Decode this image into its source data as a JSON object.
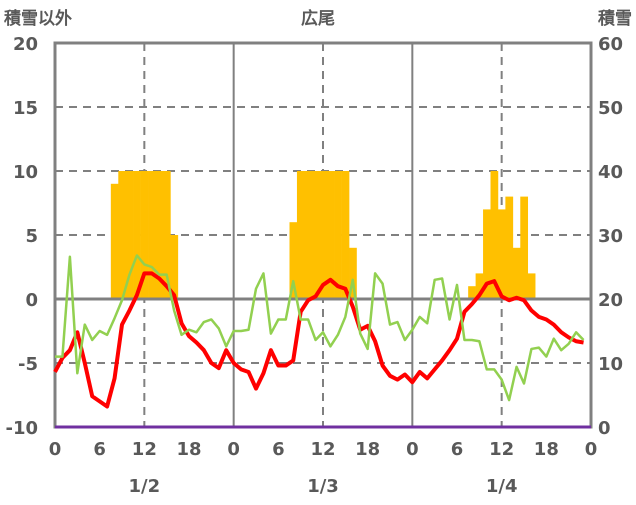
{
  "chart_data": {
    "type": "bar+line",
    "title": "広尾",
    "ylabel_left": "積雪以外",
    "ylabel_right": "積雪",
    "ylim_left": [
      -10,
      20
    ],
    "ylim_right": [
      0,
      60
    ],
    "yticks_left": [
      "20",
      "15",
      "10",
      "5",
      "0",
      "-5",
      "-10"
    ],
    "yticks_right": [
      "60",
      "50",
      "40",
      "30",
      "20",
      "10",
      "0"
    ],
    "xticks": [
      "0",
      "6",
      "12",
      "18",
      "0",
      "6",
      "12",
      "18",
      "0",
      "6",
      "12",
      "18",
      "0"
    ],
    "date_labels": [
      "1/2",
      "1/3",
      "1/4"
    ],
    "x_unit": "hour",
    "xlim": [
      0,
      72
    ],
    "grid": true,
    "colors": {
      "snow": "#FFC000",
      "red": "#FF0000",
      "green": "#92D050",
      "purple": "#7030A0",
      "axis": "#808080"
    },
    "snow_depth_bars": {
      "axis": "right",
      "hours": [
        8,
        9,
        10,
        11,
        12,
        13,
        14,
        15,
        16,
        32,
        33,
        34,
        35,
        36,
        37,
        38,
        39,
        40,
        56,
        57,
        58,
        59,
        60,
        61,
        62,
        63,
        64
      ],
      "values": [
        38,
        40,
        40,
        40,
        40,
        40,
        40,
        40,
        30,
        32,
        40,
        40,
        40,
        40,
        40,
        40,
        40,
        28,
        22,
        24,
        34,
        40,
        34,
        36,
        28,
        36,
        24
      ]
    },
    "series": [
      {
        "name": "red",
        "axis": "left",
        "start_hour": 0,
        "values": [
          -5.7,
          -4.6,
          -4.0,
          -2.6,
          -5.0,
          -7.6,
          -8.0,
          -8.4,
          -6.2,
          -2.0,
          -0.9,
          0.3,
          2.0,
          2.0,
          1.6,
          1.0,
          0.3,
          -1.9,
          -2.9,
          -3.4,
          -4.0,
          -5.0,
          -5.4,
          -4.0,
          -5.0,
          -5.5,
          -5.7,
          -7.0,
          -5.8,
          -4.0,
          -5.2,
          -5.2,
          -4.8,
          -1.0,
          -0.1,
          0.2,
          1.1,
          1.5,
          1.0,
          0.8,
          -0.6,
          -2.4,
          -2.1,
          -3.3,
          -5.2,
          -6.0,
          -6.3,
          -5.9,
          -6.5,
          -5.7,
          -6.2,
          -5.5,
          -4.8,
          -4.0,
          -3.1,
          -1.0,
          -0.4,
          0.3,
          1.2,
          1.4,
          0.2,
          -0.1,
          0.1,
          -0.1,
          -0.9,
          -1.4,
          -1.6,
          -2.0,
          -2.6,
          -3.0,
          -3.3,
          -3.4
        ]
      },
      {
        "name": "green",
        "axis": "left",
        "start_hour": 0,
        "values": [
          -4.5,
          -4.5,
          3.3,
          -5.8,
          -2.0,
          -3.2,
          -2.5,
          -2.8,
          -1.5,
          -0.1,
          1.9,
          3.4,
          2.7,
          2.5,
          1.9,
          1.9,
          -0.9,
          -2.8,
          -2.4,
          -2.6,
          -1.8,
          -1.6,
          -2.3,
          -3.7,
          -2.5,
          -2.5,
          -2.4,
          0.8,
          2.0,
          -2.7,
          -1.6,
          -1.6,
          1.4,
          -1.6,
          -1.6,
          -3.2,
          -2.6,
          -3.7,
          -2.8,
          -1.4,
          1.5,
          -2.7,
          -3.9,
          2.0,
          1.2,
          -2.0,
          -1.8,
          -3.2,
          -2.4,
          -1.4,
          -1.9,
          1.5,
          1.6,
          -1.6,
          1.1,
          -3.2,
          -3.2,
          -3.3,
          -5.5,
          -5.5,
          -6.3,
          -7.9,
          -5.3,
          -6.6,
          -3.9,
          -3.8,
          -4.5,
          -3.1,
          -4.0,
          -3.5,
          -2.6,
          -3.2
        ]
      },
      {
        "name": "purple",
        "axis": "left",
        "start_hour": 0,
        "values": [
          -10,
          -10
        ],
        "hours": [
          0,
          72
        ]
      }
    ]
  }
}
